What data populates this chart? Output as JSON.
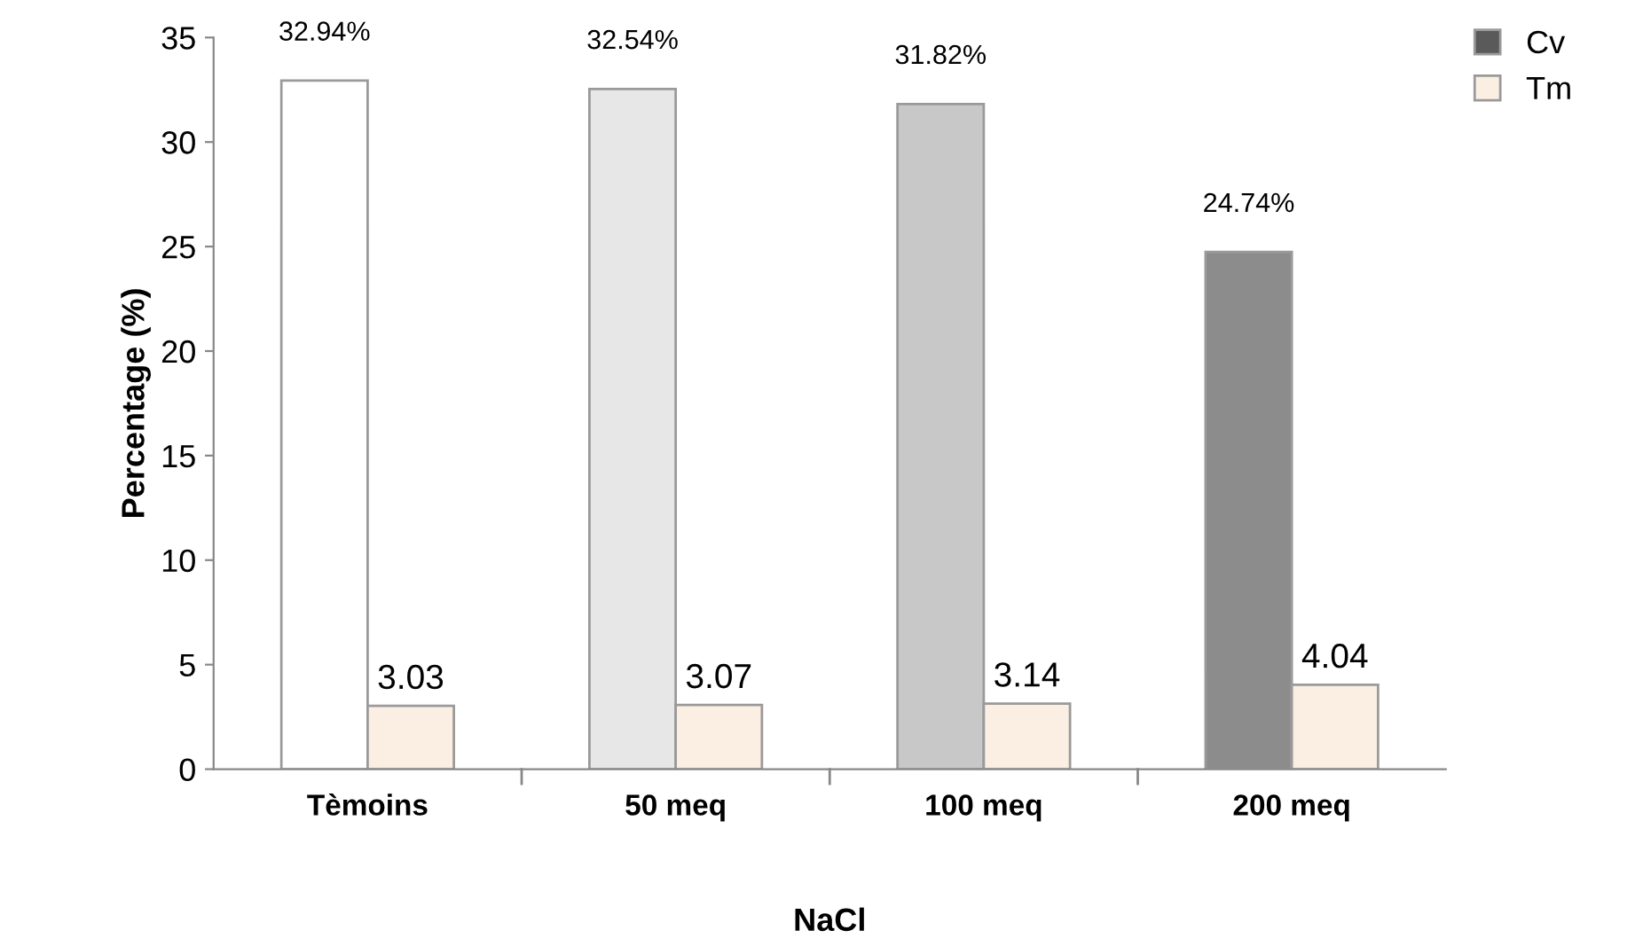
{
  "chart_data": {
    "type": "bar",
    "xlabel": "NaCl",
    "ylabel": "Percentage (%)",
    "categories": [
      "Tèmoins",
      "50 meq",
      "100 meq",
      "200 meq"
    ],
    "series": [
      {
        "name": "Cv",
        "color": "#5a5a5a",
        "colors": [
          "#ffffff",
          "#e6e7e6",
          "#c8c8c8",
          "#8c8c8c"
        ],
        "values": [
          32.94,
          32.54,
          31.82,
          24.74
        ],
        "value_labels": [
          "32.94%",
          "32.54%",
          "31.82%",
          "24.74%"
        ]
      },
      {
        "name": "Tm",
        "color": "#fbeee2",
        "values": [
          3.03,
          3.07,
          3.14,
          4.04
        ],
        "value_labels": [
          "3.03",
          "3.07",
          "3.14",
          "4.04"
        ]
      }
    ],
    "ylim": [
      0,
      35
    ],
    "yticks": [
      0,
      5,
      10,
      15,
      20,
      25,
      30,
      35
    ],
    "grid": false,
    "legend": "top right"
  }
}
